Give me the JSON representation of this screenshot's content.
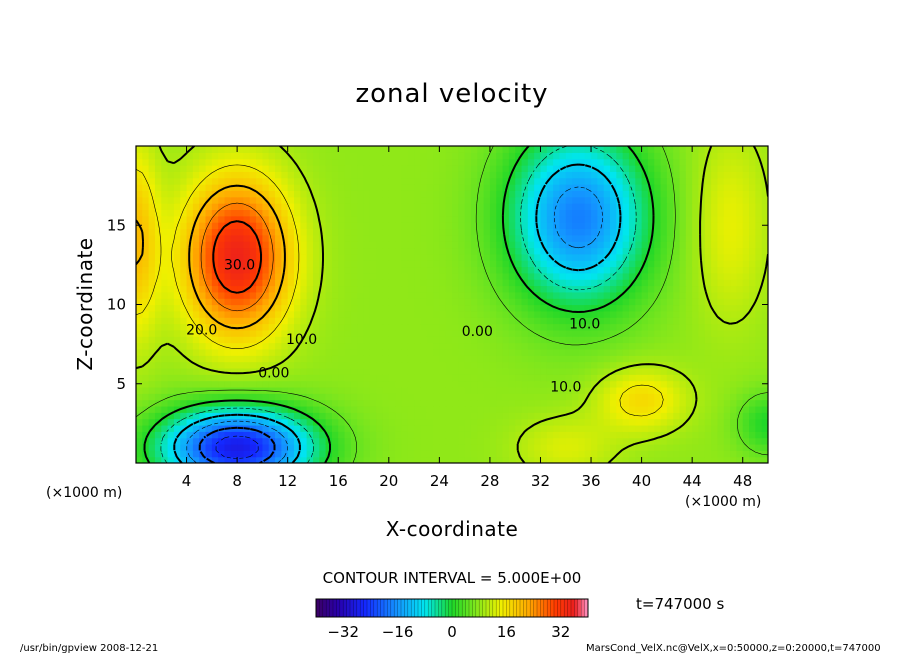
{
  "chart_data": {
    "type": "heatmap",
    "title": "zonal velocity",
    "xlabel": "X-coordinate",
    "ylabel": "Z-coordinate",
    "x_unit": "(×1000 m)",
    "y_unit": "(×1000 m)",
    "xlim": [
      0,
      50
    ],
    "ylim": [
      0,
      20
    ],
    "x_ticks": [
      4,
      8,
      12,
      16,
      20,
      24,
      28,
      32,
      36,
      40,
      44,
      48
    ],
    "y_ticks": [
      5,
      10,
      15
    ],
    "contour_labels": [
      {
        "text": "30.0",
        "x": 8.2,
        "y": 12.2
      },
      {
        "text": "20.0",
        "x": 5.2,
        "y": 8.1
      },
      {
        "text": "10.0",
        "x": 13.1,
        "y": 7.5
      },
      {
        "text": "0.00",
        "x": 10.9,
        "y": 5.4
      },
      {
        "text": "0.00",
        "x": 27.0,
        "y": 8.0
      },
      {
        "text": "10.0",
        "x": 35.5,
        "y": 8.5
      },
      {
        "text": "10.0",
        "x": 34.0,
        "y": 4.5
      }
    ],
    "contour_interval": "CONTOUR INTERVAL = 5.000E+00",
    "colorbar": {
      "min": -40,
      "max": 40,
      "ticks": [
        -32,
        -16,
        0,
        16,
        32
      ]
    },
    "features": [
      {
        "kind": "max",
        "x": 8,
        "y": 13,
        "value": 33
      },
      {
        "kind": "min",
        "x": 35,
        "y": 15,
        "value": -18
      },
      {
        "kind": "min",
        "x": 8,
        "y": 1,
        "value": -30
      },
      {
        "kind": "max",
        "x": 40,
        "y": 4,
        "value": 18
      }
    ]
  },
  "time_label": "t=747000 s",
  "footer": {
    "left": "/usr/bin/gpview  2008-12-21",
    "right": "MarsCond_VelX.nc@VelX,x=0:50000,z=0:20000,t=747000"
  }
}
